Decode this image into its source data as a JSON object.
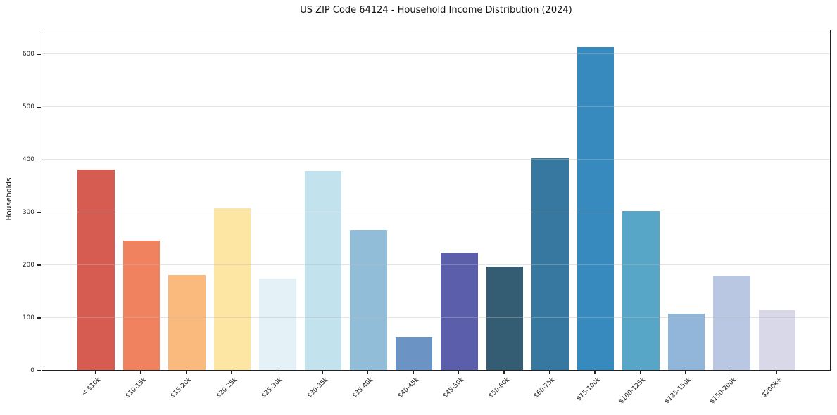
{
  "title": "US ZIP Code 64124 - Household Income Distribution (2024)",
  "chart_data": {
    "type": "bar",
    "title": "US ZIP Code 64124 - Household Income Distribution (2024)",
    "xlabel": "",
    "ylabel": "Households",
    "categories": [
      "< $10k",
      "$10-15k",
      "$15-20k",
      "$20-25k",
      "$25-30k",
      "$30-35k",
      "$35-40k",
      "$40-45k",
      "$45-50k",
      "$50-60k",
      "$60-75k",
      "$75-100k",
      "$100-125k",
      "$125-150k",
      "$150-200k",
      "$200k+"
    ],
    "values": [
      380,
      246,
      180,
      307,
      174,
      377,
      265,
      63,
      223,
      196,
      402,
      613,
      301,
      107,
      179,
      113
    ],
    "bar_colors": [
      "#d65c52",
      "#f0825f",
      "#fab97d",
      "#fde5a3",
      "#e4f2f7",
      "#c2e2ee",
      "#91bdd9",
      "#6b93c4",
      "#5b5fab",
      "#345d73",
      "#36789f",
      "#378abd",
      "#57a6c7",
      "#92b6d9",
      "#bac7e2",
      "#d8d8e8"
    ],
    "yticks": [
      0,
      100,
      200,
      300,
      400,
      500,
      600
    ],
    "ylim": [
      0,
      647
    ],
    "grid": "horizontal",
    "legend": "none",
    "background": "#ffffff",
    "spine_color": "#222222",
    "gridline_color": "#e6e6e6"
  }
}
